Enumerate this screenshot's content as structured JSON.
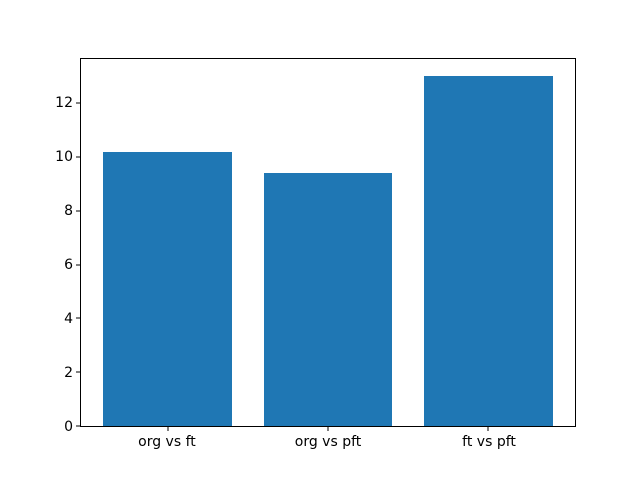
{
  "figure": {
    "background_color": "#ffffff",
    "plot_background_color": "#ffffff",
    "spine_color": "#000000",
    "tick_color": "#000000"
  },
  "chart_data": {
    "type": "bar",
    "categories": [
      "org vs ft",
      "org vs pft",
      "ft vs pft"
    ],
    "values": [
      10.2,
      9.4,
      13.0
    ],
    "title": "",
    "xlabel": "",
    "ylabel": "",
    "ylim": [
      0,
      13.65
    ],
    "yticks": [
      0,
      2,
      4,
      6,
      8,
      10,
      12
    ],
    "bar_color": "#1f77b4",
    "bar_width_fraction": 0.8,
    "grid": false,
    "legend": null
  }
}
